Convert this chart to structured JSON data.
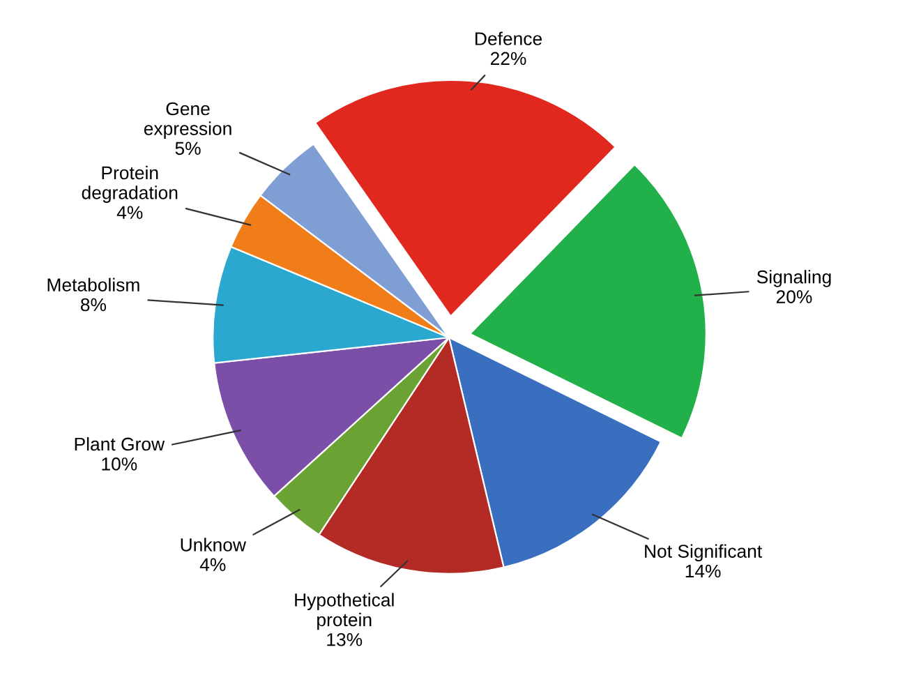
{
  "chart_data": {
    "type": "pie",
    "categories": [
      "Defence",
      "Signaling",
      "Not Significant",
      "Hypothetical\nprotein",
      "Unknow",
      "Plant Grow",
      "Metabolism",
      "Protein\ndegradation",
      "Gene\nexpression"
    ],
    "values": [
      22,
      20,
      14,
      13,
      4,
      10,
      8,
      4,
      5
    ],
    "colors": [
      "#e0281e",
      "#22b04a",
      "#3a6fc0",
      "#b42a24",
      "#6aa334",
      "#7b4fa8",
      "#2aa8cf",
      "#f07d1a",
      "#7f9fd4"
    ],
    "value_labels": [
      "22%",
      "20%",
      "14%",
      "13%",
      "4%",
      "10%",
      "8%",
      "4%",
      "5%"
    ]
  }
}
